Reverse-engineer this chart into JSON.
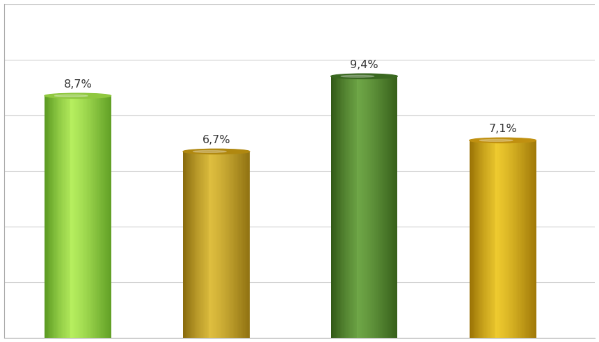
{
  "values": [
    8.7,
    6.7,
    9.4,
    7.1
  ],
  "labels": [
    "8,7%",
    "6,7%",
    "9,4%",
    "7,1%"
  ],
  "bar_colors_main": [
    "#8ed63a",
    "#c49a10",
    "#4a7d28",
    "#d4a800"
  ],
  "bar_colors_light": [
    "#b8f060",
    "#e0c040",
    "#70a848",
    "#f0cc30"
  ],
  "bar_colors_dark": [
    "#50901a",
    "#806208",
    "#2a5010",
    "#906800"
  ],
  "bar_colors_top": [
    "#90c840",
    "#b08810",
    "#3a6820",
    "#c09010"
  ],
  "x_positions": [
    1.0,
    2.5,
    4.1,
    5.6
  ],
  "bar_width": 0.72,
  "ylim": [
    0,
    12
  ],
  "background_color": "#ffffff",
  "grid_color": "#d0d0d0",
  "label_fontsize": 11.5
}
